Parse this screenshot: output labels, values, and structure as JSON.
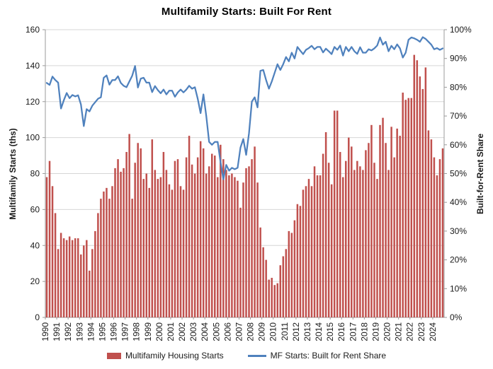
{
  "chart": {
    "title": "Multifamily Starts: Built For Rent",
    "left_axis_title": "Multifamily Starts (ths)",
    "right_axis_title": "Built-for-Rent Share",
    "legend": {
      "bars": "Multifamily Housing Starts",
      "line": "MF Starts: Built for Rent Share"
    }
  },
  "chart_data": {
    "type": "bar",
    "subtype": "bar+line-combo",
    "frequency": "quarterly",
    "title": "Multifamily Starts: Built For Rent",
    "xlabel": "",
    "ylabel_left": "Multifamily Starts (ths)",
    "ylabel_right": "Built-for-Rent Share",
    "x_year_labels": [
      1990,
      1991,
      1992,
      1993,
      1994,
      1995,
      1996,
      1997,
      1998,
      1999,
      2000,
      2001,
      2002,
      2003,
      2004,
      2005,
      2006,
      2007,
      2008,
      2009,
      2010,
      2011,
      2012,
      2013,
      2014,
      2015,
      2016,
      2017,
      2018,
      2019,
      2020,
      2021,
      2022,
      2023,
      2024
    ],
    "left_axis": {
      "min": 0,
      "max": 160,
      "tick_step": 20,
      "ticks": [
        0,
        20,
        40,
        60,
        80,
        100,
        120,
        140,
        160
      ]
    },
    "right_axis": {
      "min": 0,
      "max": 100,
      "tick_step": 10,
      "tick_labels": [
        "0%",
        "10%",
        "20%",
        "30%",
        "40%",
        "50%",
        "60%",
        "70%",
        "80%",
        "90%",
        "100%"
      ]
    },
    "grid": true,
    "legend_position": "bottom",
    "series": [
      {
        "name": "Multifamily Housing Starts",
        "type": "bar",
        "axis": "left",
        "color": "#C0504D",
        "values": [
          78,
          87,
          73,
          58,
          38,
          47,
          44,
          43,
          45,
          43,
          44,
          44,
          35,
          40,
          43,
          26,
          38,
          48,
          58,
          66,
          70,
          72,
          66,
          73,
          83,
          88,
          81,
          83,
          92,
          102,
          66,
          86,
          97,
          94,
          77,
          80,
          72,
          99,
          82,
          77,
          78,
          92,
          82,
          74,
          71,
          87,
          88,
          73,
          71,
          89,
          101,
          85,
          80,
          89,
          98,
          94,
          80,
          84,
          91,
          90,
          78,
          96,
          88,
          82,
          79,
          80,
          78,
          76,
          61,
          75,
          83,
          84,
          88,
          95,
          75,
          50,
          39,
          32,
          21,
          22,
          18,
          19,
          29,
          34,
          38,
          48,
          47,
          54,
          63,
          62,
          71,
          73,
          77,
          73,
          84,
          79,
          79,
          91,
          103,
          86,
          74,
          115,
          115,
          92,
          78,
          87,
          100,
          95,
          82,
          87,
          84,
          82,
          93,
          97,
          107,
          86,
          77,
          107,
          111,
          97,
          82,
          106,
          89,
          105,
          101,
          125,
          121,
          122,
          122,
          146,
          143,
          134,
          127,
          139,
          104,
          99,
          89,
          79,
          88,
          94
        ]
      },
      {
        "name": "MF Starts: Built for Rent Share",
        "type": "line",
        "axis": "right",
        "unit": "%",
        "color": "#4F81BD",
        "values": [
          81.5,
          80.8,
          83.7,
          82.5,
          81.6,
          72.6,
          75.5,
          78,
          76.2,
          77.3,
          76.8,
          77.2,
          74,
          66.5,
          72.4,
          71.6,
          73.6,
          74.8,
          76,
          76.5,
          83.3,
          84.1,
          80.9,
          82.5,
          82.5,
          83.8,
          81.5,
          80.5,
          80,
          82,
          84,
          87.4,
          79.9,
          83,
          83.3,
          81.6,
          81.6,
          78.3,
          80.4,
          79,
          77.9,
          79.2,
          77.5,
          78.8,
          78.8,
          76.7,
          78.2,
          79.2,
          78.2,
          79.2,
          80.5,
          79.5,
          80,
          76,
          71,
          77.5,
          70,
          61,
          60,
          61,
          61,
          54,
          48,
          53,
          51,
          52,
          51.5,
          52,
          59,
          62,
          56.5,
          64,
          75,
          76.5,
          73,
          85.7,
          86,
          82.5,
          79.5,
          82,
          85,
          88,
          86,
          88,
          90.5,
          89,
          92,
          90,
          94,
          92.7,
          91.5,
          93,
          93.6,
          94.4,
          93.2,
          94,
          94,
          92.1,
          93.4,
          92.5,
          91.5,
          94,
          93,
          94.5,
          91,
          94,
          92.5,
          94,
          92.5,
          91.6,
          93.9,
          92,
          92,
          93.2,
          92.8,
          93.5,
          94.5,
          97.3,
          94.8,
          95.8,
          92.5,
          94.4,
          93.2,
          94.9,
          93.5,
          90.3,
          92,
          96.5,
          97.3,
          97,
          96.5,
          95.8,
          97.4,
          96.8,
          95.8,
          94.8,
          93.2,
          93.6,
          93,
          93.5
        ]
      }
    ],
    "colors": {
      "bar": "#C0504D",
      "line": "#4F81BD",
      "gridline": "#D6D6D6",
      "axis_line": "#9B9B9B",
      "tick_text": "#1a1a1a"
    }
  }
}
